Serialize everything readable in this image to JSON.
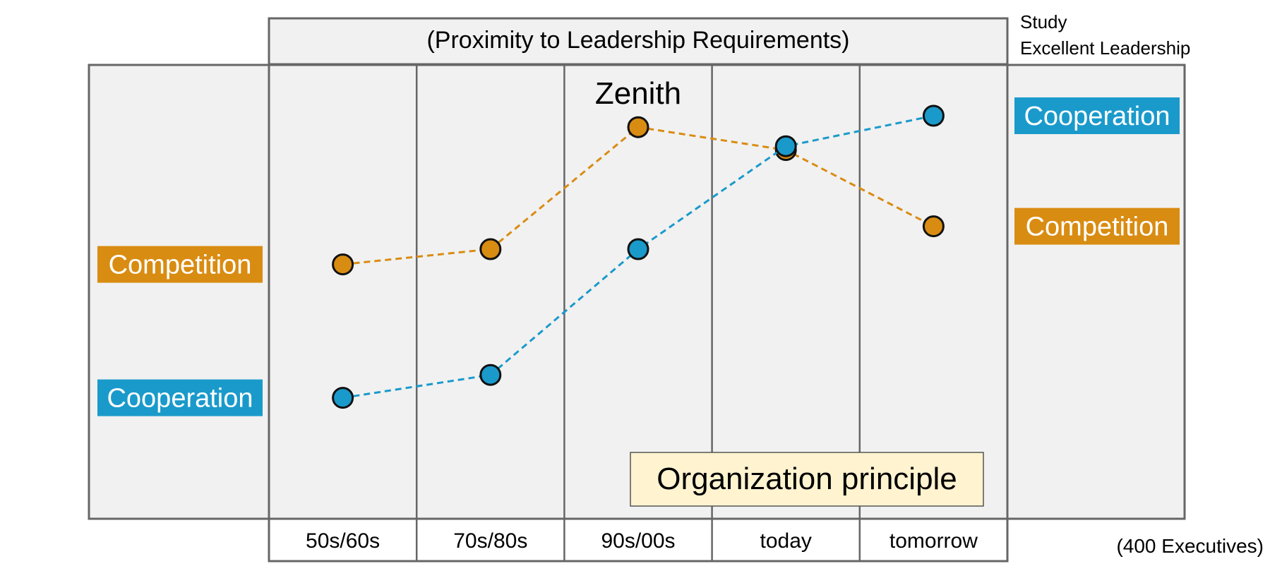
{
  "chart_data": {
    "type": "line",
    "title": "(Proximity to Leadership Requirements)",
    "study_label": [
      "Study",
      "Excellent Leadership"
    ],
    "sample_note": "(400 Executives)",
    "categories": [
      "50s/60s",
      "70s/80s",
      "90s/00s",
      "today",
      "tomorrow"
    ],
    "ylim": [
      0,
      100
    ],
    "grid": true,
    "series": [
      {
        "name": "Competition",
        "color": "#d98c12",
        "values": [
          51,
          55,
          87,
          81,
          61
        ]
      },
      {
        "name": "Cooperation",
        "color": "#1a9acb",
        "values": [
          16,
          22,
          55,
          82,
          90
        ]
      }
    ],
    "left_labels": [
      {
        "text": "Competition",
        "color": "#d98c12",
        "value": 51
      },
      {
        "text": "Cooperation",
        "color": "#1a9acb",
        "value": 16
      }
    ],
    "right_labels": [
      {
        "text": "Cooperation",
        "color": "#1a9acb",
        "value": 90
      },
      {
        "text": "Competition",
        "color": "#d98c12",
        "value": 61
      }
    ],
    "annotations": {
      "peak": "Zenith",
      "box": "Organization principle",
      "box_color": "#fff3d0"
    }
  }
}
